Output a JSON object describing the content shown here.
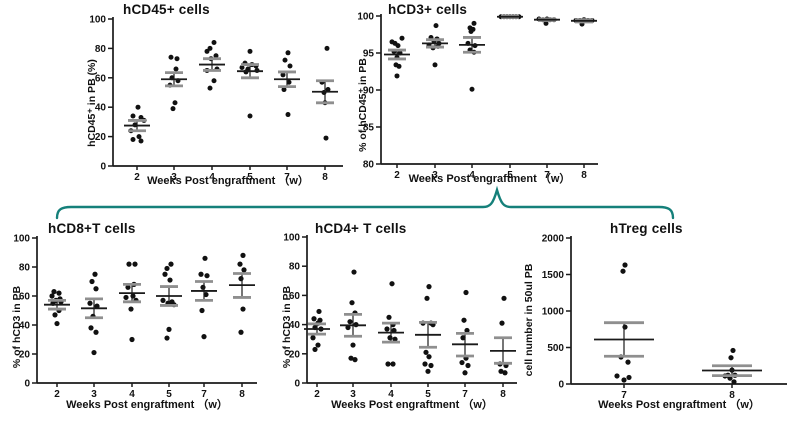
{
  "colors": {
    "dot": "#111111",
    "mean_line": "#1a1a1a",
    "error_cap": "#8f8f8f",
    "axis": "#1a1a1a",
    "brace": "#15807a",
    "background": "#ffffff"
  },
  "chart_data": [
    {
      "type": "scatter",
      "title": "hCD45+ cells",
      "ylabel": "hCD45⁺ in PB (%)",
      "xlabel": "Weeks Post engraftment （w）",
      "ylim": [
        0,
        100
      ],
      "yticks": [
        0,
        20,
        40,
        60,
        80,
        100
      ],
      "categories": [
        "2",
        "3",
        "4",
        "5",
        "7",
        "8"
      ],
      "groups": [
        {
          "week": "2",
          "mean": 27.5,
          "sem_lo": 24,
          "sem_hi": 31,
          "points": [
            [
              1,
              40
            ],
            [
              -4,
              34
            ],
            [
              4,
              33
            ],
            [
              7,
              31
            ],
            [
              -2,
              28
            ],
            [
              -6,
              24
            ],
            [
              2,
              20
            ],
            [
              -4,
              18
            ],
            [
              4,
              17
            ]
          ]
        },
        {
          "week": "3",
          "mean": 59,
          "sem_lo": 54.5,
          "sem_hi": 63.5,
          "points": [
            [
              -3,
              74
            ],
            [
              3,
              73
            ],
            [
              2,
              66
            ],
            [
              -2,
              60
            ],
            [
              4,
              58
            ],
            [
              -4,
              55
            ],
            [
              1,
              43
            ],
            [
              -1,
              39
            ]
          ]
        },
        {
          "week": "4",
          "mean": 69,
          "sem_lo": 65,
          "sem_hi": 73,
          "points": [
            [
              2,
              84
            ],
            [
              -2,
              80
            ],
            [
              -5,
              78
            ],
            [
              4,
              75
            ],
            [
              -1,
              73
            ],
            [
              5,
              66
            ],
            [
              -5,
              65
            ],
            [
              2,
              58
            ],
            [
              -2,
              53
            ]
          ]
        },
        {
          "week": "5",
          "mean": 64.5,
          "sem_lo": 60,
          "sem_hi": 69,
          "points": [
            [
              0,
              78
            ],
            [
              -5,
              70
            ],
            [
              2,
              69
            ],
            [
              6,
              68
            ],
            [
              -8,
              67
            ],
            [
              -2,
              66
            ],
            [
              7,
              65
            ],
            [
              -4,
              64
            ],
            [
              0,
              34
            ]
          ]
        },
        {
          "week": "7",
          "mean": 59,
          "sem_lo": 54,
          "sem_hi": 64,
          "points": [
            [
              1,
              77
            ],
            [
              -2,
              72
            ],
            [
              3,
              68
            ],
            [
              -4,
              62
            ],
            [
              2,
              57
            ],
            [
              -3,
              52
            ],
            [
              1,
              35
            ]
          ]
        },
        {
          "week": "8",
          "mean": 50.5,
          "sem_lo": 43,
          "sem_hi": 58,
          "points": [
            [
              2,
              80
            ],
            [
              -3,
              57
            ],
            [
              3,
              52
            ],
            [
              -1,
              50
            ],
            [
              0,
              43
            ],
            [
              1,
              19
            ]
          ]
        }
      ]
    },
    {
      "type": "scatter",
      "title": "hCD3+ cells",
      "ylabel": "% of hCD45⁺ in PB",
      "xlabel": "Weeks Post engraftment （w）",
      "ylim": [
        80,
        100
      ],
      "yticks": [
        80,
        85,
        90,
        95,
        100
      ],
      "categories": [
        "2",
        "3",
        "4",
        "5",
        "7",
        "8"
      ],
      "groups": [
        {
          "week": "2",
          "mean": 94.8,
          "sem_lo": 94.2,
          "sem_hi": 95.4,
          "points": [
            [
              5,
              97
            ],
            [
              -5,
              96.5
            ],
            [
              -2,
              96.3
            ],
            [
              1,
              96
            ],
            [
              -3,
              95.2
            ],
            [
              3,
              95
            ],
            [
              0,
              94.4
            ],
            [
              -1,
              93.4
            ],
            [
              2,
              93.2
            ],
            [
              0,
              91.9
            ]
          ]
        },
        {
          "week": "3",
          "mean": 96.3,
          "sem_lo": 95.8,
          "sem_hi": 96.8,
          "points": [
            [
              1,
              98.7
            ],
            [
              -4,
              97.1
            ],
            [
              2,
              96.9
            ],
            [
              -1,
              96.6
            ],
            [
              4,
              96.3
            ],
            [
              -6,
              96.1
            ],
            [
              3,
              95.9
            ],
            [
              -2,
              95.7
            ],
            [
              0,
              93.4
            ]
          ]
        },
        {
          "week": "4",
          "mean": 96.1,
          "sem_lo": 95.1,
          "sem_hi": 97.1,
          "points": [
            [
              2,
              99
            ],
            [
              -2,
              98.4
            ],
            [
              1,
              98.2
            ],
            [
              -1,
              97.9
            ],
            [
              -4,
              96.3
            ],
            [
              3,
              96
            ],
            [
              -2,
              95.4
            ],
            [
              2,
              95.1
            ],
            [
              0,
              90.1
            ]
          ]
        },
        {
          "week": "5",
          "mean": 99.9,
          "sem_lo": 99.8,
          "sem_hi": 100,
          "points": [
            [
              -9,
              99.9
            ],
            [
              -6,
              99.9
            ],
            [
              -3,
              99.9
            ],
            [
              0,
              99.9
            ],
            [
              3,
              99.9
            ],
            [
              6,
              99.9
            ],
            [
              9,
              99.9
            ]
          ]
        },
        {
          "week": "7",
          "mean": 99.5,
          "sem_lo": 99.4,
          "sem_hi": 99.6,
          "points": [
            [
              -8,
              99.6
            ],
            [
              -4,
              99.5
            ],
            [
              0,
              99.6
            ],
            [
              3,
              99.5
            ],
            [
              7,
              99.5
            ],
            [
              -1,
              99.0
            ]
          ]
        },
        {
          "week": "8",
          "mean": 99.35,
          "sem_lo": 99.2,
          "sem_hi": 99.5,
          "points": [
            [
              -8,
              99.4
            ],
            [
              -4,
              99.4
            ],
            [
              0,
              99.5
            ],
            [
              4,
              99.4
            ],
            [
              8,
              99.4
            ],
            [
              -2,
              98.9
            ]
          ]
        }
      ]
    },
    {
      "type": "scatter",
      "title": "hCD8+T cells",
      "ylabel": "% of hCD3 in PB",
      "xlabel": "Weeks Post engraftment （w）",
      "ylim": [
        0,
        100
      ],
      "yticks": [
        0,
        20,
        40,
        60,
        80,
        100
      ],
      "categories": [
        "2",
        "3",
        "4",
        "5",
        "7",
        "8"
      ],
      "groups": [
        {
          "week": "2",
          "mean": 54,
          "sem_lo": 51,
          "sem_hi": 57,
          "points": [
            [
              -3,
              63
            ],
            [
              2,
              62
            ],
            [
              -5,
              60
            ],
            [
              3,
              58
            ],
            [
              -1,
              57
            ],
            [
              4,
              56
            ],
            [
              -4,
              55
            ],
            [
              2,
              50
            ],
            [
              -2,
              47
            ],
            [
              0,
              41
            ]
          ]
        },
        {
          "week": "3",
          "mean": 51.5,
          "sem_lo": 45,
          "sem_hi": 58,
          "points": [
            [
              1,
              75
            ],
            [
              -2,
              70
            ],
            [
              2,
              65
            ],
            [
              -4,
              55
            ],
            [
              3,
              53
            ],
            [
              -1,
              46
            ],
            [
              -3,
              38
            ],
            [
              2,
              35
            ],
            [
              0,
              21
            ]
          ]
        },
        {
          "week": "4",
          "mean": 62,
          "sem_lo": 56,
          "sem_hi": 68,
          "points": [
            [
              -3,
              82
            ],
            [
              3,
              82
            ],
            [
              2,
              68
            ],
            [
              -4,
              66
            ],
            [
              1,
              60
            ],
            [
              -6,
              59
            ],
            [
              4,
              57
            ],
            [
              -1,
              51
            ],
            [
              0,
              30
            ]
          ]
        },
        {
          "week": "5",
          "mean": 60,
          "sem_lo": 53.5,
          "sem_hi": 66.5,
          "points": [
            [
              2,
              82
            ],
            [
              -2,
              79
            ],
            [
              -4,
              75
            ],
            [
              1,
              71
            ],
            [
              -6,
              57
            ],
            [
              3,
              56
            ],
            [
              -1,
              55
            ],
            [
              5,
              54
            ],
            [
              0,
              37
            ],
            [
              -2,
              31
            ]
          ]
        },
        {
          "week": "7",
          "mean": 63.5,
          "sem_lo": 57,
          "sem_hi": 70,
          "points": [
            [
              1,
              86
            ],
            [
              -3,
              75
            ],
            [
              3,
              74
            ],
            [
              -1,
              66
            ],
            [
              2,
              61
            ],
            [
              -2,
              50
            ],
            [
              0,
              32
            ]
          ]
        },
        {
          "week": "8",
          "mean": 67.5,
          "sem_lo": 59,
          "sem_hi": 75.5,
          "points": [
            [
              1,
              88
            ],
            [
              -2,
              82
            ],
            [
              2,
              78
            ],
            [
              -1,
              72
            ],
            [
              1,
              51
            ],
            [
              -1,
              35
            ]
          ]
        }
      ]
    },
    {
      "type": "scatter",
      "title": "hCD4+ T cells",
      "ylabel": "% of hCD3 in PB",
      "xlabel": "Weeks Post engraftment （w）",
      "ylim": [
        0,
        100
      ],
      "yticks": [
        0,
        20,
        40,
        60,
        80,
        100
      ],
      "categories": [
        "2",
        "3",
        "4",
        "5",
        "7",
        "8"
      ],
      "groups": [
        {
          "week": "2",
          "mean": 37,
          "sem_lo": 33.5,
          "sem_hi": 40.5,
          "points": [
            [
              2,
              49
            ],
            [
              -3,
              44
            ],
            [
              3,
              43
            ],
            [
              1,
              41
            ],
            [
              -2,
              38
            ],
            [
              4,
              37
            ],
            [
              -4,
              31
            ],
            [
              1,
              26
            ],
            [
              -2,
              23
            ]
          ]
        },
        {
          "week": "3",
          "mean": 39.5,
          "sem_lo": 32,
          "sem_hi": 47,
          "points": [
            [
              1,
              76
            ],
            [
              -1,
              55
            ],
            [
              2,
              48
            ],
            [
              -3,
              42
            ],
            [
              3,
              40
            ],
            [
              -5,
              38
            ],
            [
              0,
              26
            ],
            [
              -2,
              17
            ],
            [
              2,
              16
            ]
          ]
        },
        {
          "week": "4",
          "mean": 34.5,
          "sem_lo": 28,
          "sem_hi": 41,
          "points": [
            [
              1,
              68
            ],
            [
              -2,
              45
            ],
            [
              2,
              40
            ],
            [
              -4,
              37
            ],
            [
              3,
              36
            ],
            [
              -1,
              31
            ],
            [
              4,
              30
            ],
            [
              -3,
              13
            ],
            [
              2,
              13
            ]
          ]
        },
        {
          "week": "5",
          "mean": 33,
          "sem_lo": 24.5,
          "sem_hi": 41.5,
          "points": [
            [
              1,
              66
            ],
            [
              -1,
              58
            ],
            [
              -5,
              41
            ],
            [
              3,
              41
            ],
            [
              5,
              40
            ],
            [
              -2,
              21
            ],
            [
              1,
              18
            ],
            [
              -3,
              13
            ],
            [
              3,
              12
            ],
            [
              0,
              8
            ]
          ]
        },
        {
          "week": "7",
          "mean": 26.5,
          "sem_lo": 18.5,
          "sem_hi": 34,
          "points": [
            [
              1,
              62
            ],
            [
              -1,
              43
            ],
            [
              2,
              36
            ],
            [
              -2,
              31
            ],
            [
              1,
              17
            ],
            [
              -3,
              14
            ],
            [
              3,
              12
            ],
            [
              0,
              7
            ]
          ]
        },
        {
          "week": "8",
          "mean": 22,
          "sem_lo": 13.5,
          "sem_hi": 31,
          "points": [
            [
              1,
              58
            ],
            [
              -1,
              41
            ],
            [
              -3,
              13
            ],
            [
              3,
              12
            ],
            [
              -2,
              8
            ],
            [
              2,
              7
            ]
          ]
        }
      ]
    },
    {
      "type": "scatter",
      "title": "hTreg cells",
      "ylabel": "cell number in 50ul PB",
      "xlabel": "Weeks Post engraftment （w）",
      "ylim": [
        0,
        2000
      ],
      "yticks": [
        0,
        500,
        1000,
        1500,
        2000
      ],
      "categories": [
        "7",
        "8"
      ],
      "groups": [
        {
          "week": "7",
          "mean": 610,
          "sem_lo": 380,
          "sem_hi": 840,
          "points": [
            [
              1,
              1630
            ],
            [
              -1,
              1545
            ],
            [
              1,
              780
            ],
            [
              -3,
              370
            ],
            [
              4,
              300
            ],
            [
              -7,
              110
            ],
            [
              5,
              90
            ],
            [
              0,
              55
            ]
          ]
        },
        {
          "week": "8",
          "mean": 185,
          "sem_lo": 115,
          "sem_hi": 250,
          "points": [
            [
              1,
              460
            ],
            [
              -1,
              360
            ],
            [
              0,
              190
            ],
            [
              -4,
              120
            ],
            [
              3,
              120
            ],
            [
              -7,
              110
            ],
            [
              -2,
              80
            ],
            [
              2,
              30
            ]
          ]
        }
      ]
    }
  ]
}
